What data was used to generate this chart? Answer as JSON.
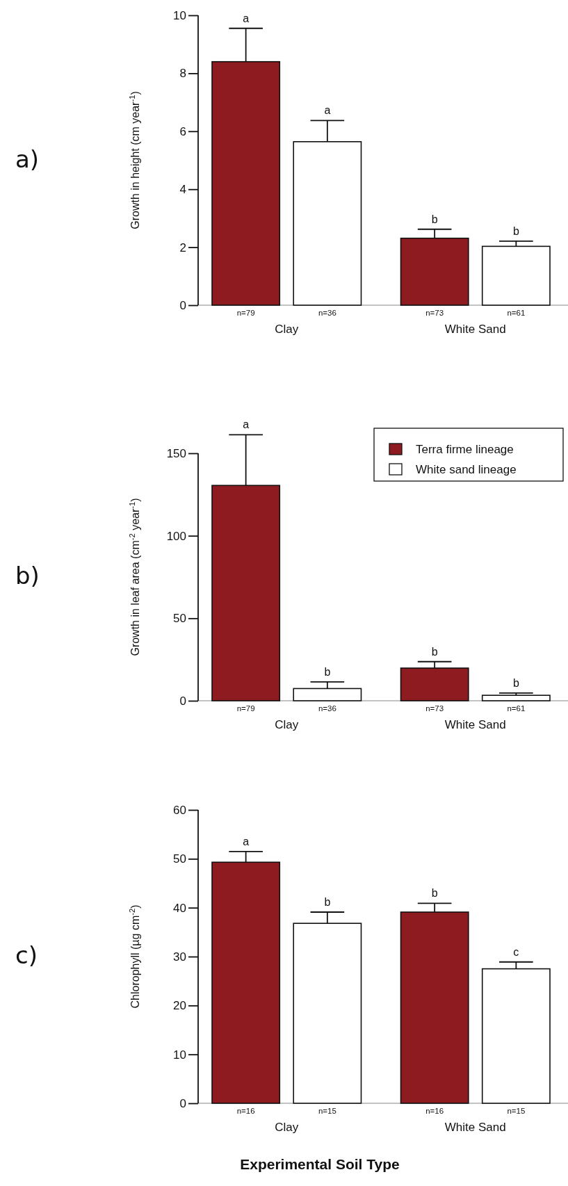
{
  "chart_data": [
    {
      "type": "bar",
      "title": "a)",
      "ylabel": "Growth in height (cm year$^{-1}$)",
      "categories": [
        "Clay",
        "White Sand"
      ],
      "series": [
        {
          "color": "#8e1b20",
          "values": [
            8.4,
            2.31
          ],
          "errors": [
            1.15,
            0.31
          ]
        },
        {
          "color": "#ffffff",
          "values": [
            5.64,
            2.03
          ],
          "errors": [
            0.73,
            0.18
          ]
        }
      ],
      "ylim": [
        0,
        10
      ],
      "yticks": [
        0,
        2,
        4,
        6,
        8,
        10
      ],
      "annotations": [
        "a",
        "a",
        "b",
        "b",
        "n=79",
        "n=36",
        "n=73",
        "n=61"
      ]
    },
    {
      "type": "bar",
      "title": "b)",
      "ylabel": "Growth in leaf area (cm$^{-2}$ year$^{-1}$)",
      "categories": [
        "Clay",
        "White Sand"
      ],
      "series": [
        {
          "name": "Terra firme lineage",
          "color": "#8e1b20",
          "values": [
            130.5,
            19.8
          ],
          "errors": [
            30.7,
            3.9
          ]
        },
        {
          "name": "White sand lineage",
          "color": "#ffffff",
          "values": [
            7.4,
            3.3
          ],
          "errors": [
            4,
            1.4
          ]
        }
      ],
      "ylim": [
        0,
        150
      ],
      "yticks": [
        0,
        50,
        100,
        150
      ],
      "legend": "top right",
      "annotations": [
        "a",
        "b",
        "b",
        "b",
        "n=79",
        "n=36",
        "n=73",
        "n=61"
      ]
    },
    {
      "type": "bar",
      "title": "c)",
      "ylabel": "Chlorophyll (µg cm$^{-2}$)",
      "xlabel": "Experimental Soil Type",
      "categories": [
        "Clay",
        "White Sand"
      ],
      "series": [
        {
          "color": "#8e1b20",
          "values": [
            49.3,
            39.1
          ],
          "errors": [
            2.2,
            1.8
          ]
        },
        {
          "color": "#ffffff",
          "values": [
            36.8,
            27.5
          ],
          "errors": [
            2.3,
            1.4
          ]
        }
      ],
      "ylim": [
        0,
        60
      ],
      "yticks": [
        0,
        10,
        20,
        30,
        40,
        50,
        60
      ],
      "annotations": [
        "a",
        "b",
        "b",
        "c",
        "n=16",
        "n=15",
        "n=16",
        "n=15"
      ]
    }
  ]
}
